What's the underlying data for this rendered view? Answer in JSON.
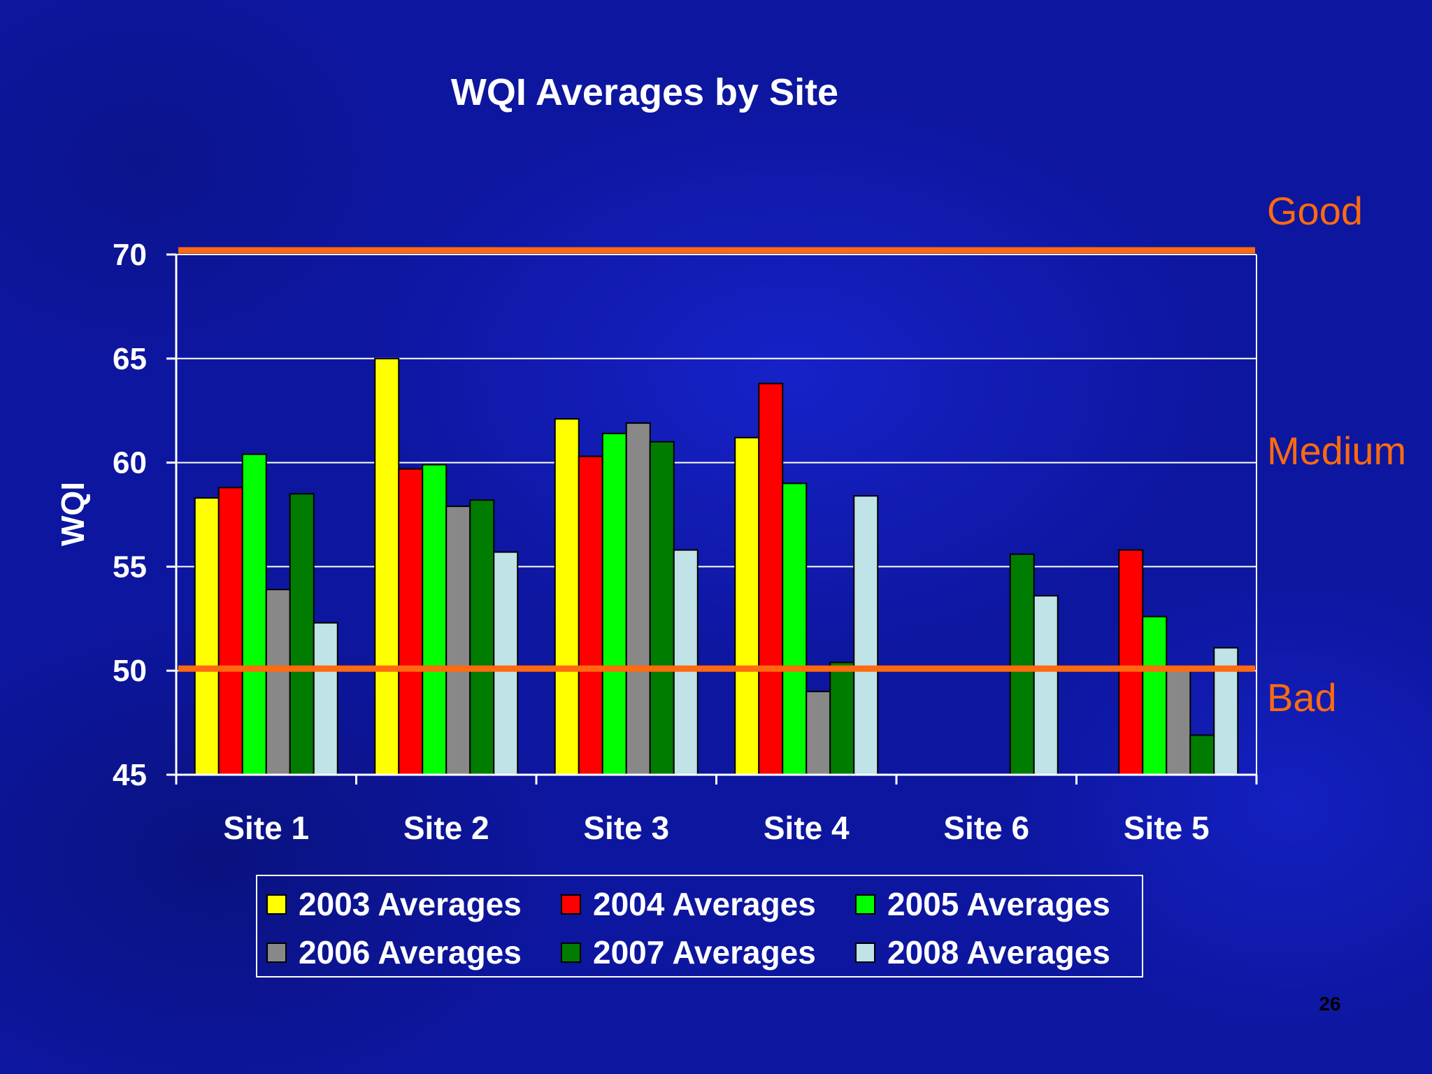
{
  "chart_data": {
    "type": "bar",
    "title": "WQI Averages by Site",
    "ylabel": "WQI",
    "xlabel": "",
    "ylim": [
      45,
      70
    ],
    "yticks": [
      45,
      50,
      55,
      60,
      65,
      70
    ],
    "grid": true,
    "categories": [
      "Site 1",
      "Site 2",
      "Site 3",
      "Site 4",
      "Site 6",
      "Site 5"
    ],
    "series": [
      {
        "name": "2003 Averages",
        "color": "#ffff00",
        "values": [
          58.3,
          65.0,
          62.1,
          61.2,
          null,
          null
        ]
      },
      {
        "name": "2004 Averages",
        "color": "#ff0000",
        "values": [
          58.8,
          59.7,
          60.3,
          63.8,
          null,
          55.8
        ]
      },
      {
        "name": "2005 Averages",
        "color": "#00ff00",
        "values": [
          60.4,
          59.9,
          61.4,
          59.0,
          null,
          52.6
        ]
      },
      {
        "name": "2006 Averages",
        "color": "#888888",
        "values": [
          53.9,
          57.9,
          61.9,
          49.0,
          null,
          50.1
        ]
      },
      {
        "name": "2007 Averages",
        "color": "#007d00",
        "values": [
          58.5,
          58.2,
          61.0,
          50.4,
          55.6,
          46.9
        ]
      },
      {
        "name": "2008 Averages",
        "color": "#bfe3e6",
        "values": [
          52.3,
          55.7,
          55.8,
          58.4,
          53.6,
          51.1
        ]
      }
    ],
    "reference_lines": [
      {
        "value": 70.2,
        "color": "#ff6a10"
      },
      {
        "value": 50.1,
        "color": "#ff6a10"
      }
    ],
    "zone_labels": [
      "Good",
      "Medium",
      "Bad"
    ],
    "legend_position": "bottom"
  },
  "page_number": "26"
}
